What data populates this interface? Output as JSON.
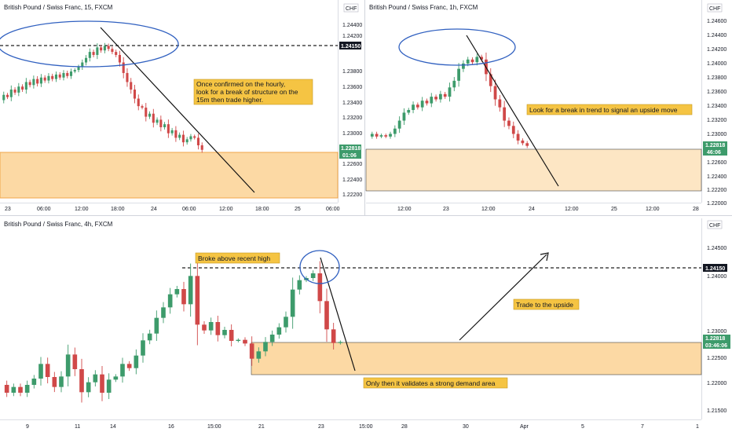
{
  "colors": {
    "up": "#3d9b6b",
    "down": "#d04848",
    "zone": "#f7b64a",
    "note": "#f2c94c",
    "circle": "#3060c0",
    "bg": "#ffffff"
  },
  "chart_data": [
    {
      "type": "candlestick",
      "title": "British Pound / Swiss Franc, 15, FXCM",
      "currency": "CHF",
      "yticks": [
        "1.24400",
        "1.24200",
        "1.23800",
        "1.23600",
        "1.23400",
        "1.23200",
        "1.23000",
        "1.22600",
        "1.22400",
        "1.22200"
      ],
      "xticks": [
        "23",
        "06:00",
        "12:00",
        "18:00",
        "24",
        "06:00",
        "12:00",
        "18:00",
        "25",
        "06:00"
      ],
      "ylim": [
        1.2215,
        1.2458
      ],
      "level": "1.24150",
      "last_price": "1.22818",
      "countdown": "01:06",
      "zone": [
        1.2213,
        1.2275
      ],
      "note": [
        "Once confirmed on the hourly,",
        "look for a break of structure on the",
        "15m then trade higher."
      ],
      "closes": [
        1.2348,
        1.2355,
        1.2352,
        1.2362,
        1.2358,
        1.2366,
        1.2362,
        1.2372,
        1.2368,
        1.2376,
        1.237,
        1.2378,
        1.2374,
        1.238,
        1.2376,
        1.2382,
        1.2378,
        1.2384,
        1.238,
        1.2386,
        1.2388,
        1.2392,
        1.2398,
        1.2404,
        1.2412,
        1.2408,
        1.2418,
        1.2414,
        1.242,
        1.2416,
        1.2412,
        1.2408,
        1.2398,
        1.2384,
        1.2372,
        1.2362,
        1.235,
        1.234,
        1.2338,
        1.2326,
        1.233,
        1.2318,
        1.2322,
        1.2312,
        1.2316,
        1.2304,
        1.2308,
        1.2298,
        1.2302,
        1.2292,
        1.2296,
        1.23,
        1.2298,
        1.2288,
        1.2282
      ]
    },
    {
      "type": "candlestick",
      "title": "British Pound / Swiss Franc, 1h, FXCM",
      "currency": "CHF",
      "yticks": [
        "1.24600",
        "1.24400",
        "1.24200",
        "1.24000",
        "1.23800",
        "1.23600",
        "1.23400",
        "1.23200",
        "1.23000",
        "1.22600",
        "1.22400",
        "1.22200",
        "1.22000"
      ],
      "xticks": [
        "12:00",
        "23",
        "12:00",
        "24",
        "12:00",
        "25",
        "12:00",
        "28"
      ],
      "ylim": [
        1.22,
        1.2478
      ],
      "last_price": "1.22818",
      "countdown": "46:06",
      "zone": [
        1.2219,
        1.2278
      ],
      "note": [
        "Look for a break in trend to signal an upside move"
      ],
      "closes": [
        1.2296,
        1.23,
        1.2296,
        1.2298,
        1.2296,
        1.23,
        1.2308,
        1.232,
        1.2332,
        1.2336,
        1.2344,
        1.234,
        1.235,
        1.2346,
        1.2356,
        1.2352,
        1.236,
        1.2356,
        1.237,
        1.238,
        1.2398,
        1.2406,
        1.2412,
        1.2408,
        1.2416,
        1.2412,
        1.239,
        1.2372,
        1.2352,
        1.234,
        1.232,
        1.2312,
        1.23,
        1.229,
        1.2286,
        1.2282
      ]
    },
    {
      "type": "candlestick",
      "title": "British Pound / Swiss Franc, 4h, FXCM",
      "currency": "CHF",
      "yticks": [
        "1.24500",
        "1.24000",
        "1.23000",
        "1.22500",
        "1.22000",
        "1.21500"
      ],
      "xticks": [
        "9",
        "11",
        "14",
        "16",
        "15:00",
        "21",
        "23",
        "15:00",
        "28",
        "30",
        "Apr",
        "5",
        "7",
        "1"
      ],
      "ylim": [
        1.214,
        1.2485
      ],
      "level": "1.24150",
      "last_price": "1.22818",
      "countdown": "03:46:06",
      "zone": [
        1.2217,
        1.2277
      ],
      "notes": [
        "Broke above recent high",
        "Trade to the upside",
        "Only then it validates a strong demand area"
      ],
      "closes": [
        1.22,
        1.2185,
        1.2196,
        1.2185,
        1.22,
        1.2212,
        1.224,
        1.2215,
        1.2196,
        1.2216,
        1.2258,
        1.223,
        1.2186,
        1.2205,
        1.222,
        1.2185,
        1.221,
        1.2216,
        1.224,
        1.2232,
        1.2256,
        1.2285,
        1.2298,
        1.2328,
        1.2348,
        1.2373,
        1.2383,
        1.2354,
        1.2408,
        1.2315,
        1.2304,
        1.232,
        1.2295,
        1.2305,
        1.2284,
        1.2286,
        1.2279,
        1.225,
        1.2264,
        1.2282,
        1.2296,
        1.231,
        1.233,
        1.2382,
        1.24,
        1.2404,
        1.2413,
        1.236,
        1.2306,
        1.228,
        1.2282
      ]
    }
  ]
}
